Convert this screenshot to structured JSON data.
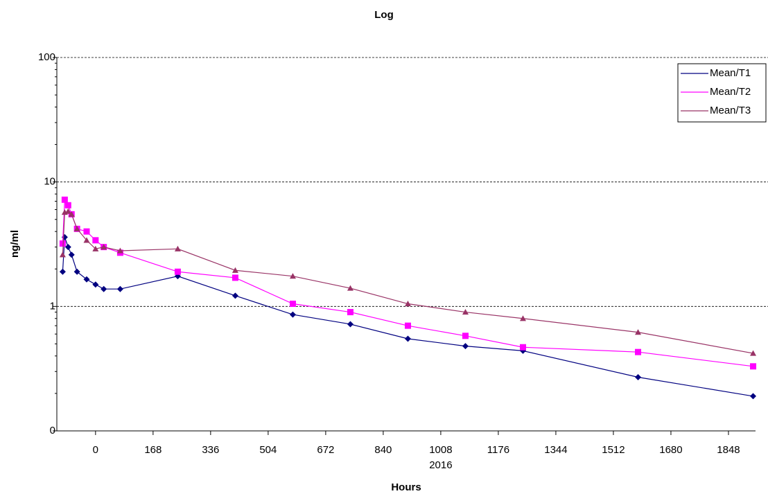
{
  "chart_data": {
    "type": "line",
    "title": "Log",
    "x_label": "Hours",
    "y_label": "ng/ml",
    "x_annotation": "2016",
    "x": [
      -96,
      -90,
      -80,
      -70,
      -54,
      -26,
      0,
      24,
      72,
      240,
      408,
      576,
      744,
      912,
      1080,
      1248,
      1584,
      1920
    ],
    "series": [
      {
        "name": "Mean/T1",
        "color": "#000080",
        "marker": "diamond",
        "values": [
          1.9,
          3.6,
          3.0,
          2.6,
          1.9,
          1.65,
          1.5,
          1.38,
          1.38,
          1.75,
          1.22,
          0.86,
          0.72,
          0.55,
          0.48,
          0.44,
          0.27,
          0.19
        ]
      },
      {
        "name": "Mean/T2",
        "color": "#ff00ff",
        "marker": "square",
        "values": [
          3.2,
          7.2,
          6.5,
          5.5,
          4.2,
          4.0,
          3.4,
          3.0,
          2.7,
          1.9,
          1.7,
          1.05,
          0.9,
          0.7,
          0.58,
          0.47,
          0.43,
          0.33
        ]
      },
      {
        "name": "Mean/T3",
        "color": "#993366",
        "marker": "triangle",
        "values": [
          2.6,
          5.7,
          5.8,
          5.5,
          4.2,
          3.4,
          2.9,
          3.0,
          2.8,
          2.9,
          1.95,
          1.75,
          1.4,
          1.05,
          0.9,
          0.8,
          0.62,
          0.42
        ]
      }
    ],
    "xlim": [
      -113,
      1927
    ],
    "xticks": [
      0,
      168,
      336,
      504,
      672,
      840,
      1008,
      1176,
      1344,
      1512,
      1680,
      1848
    ],
    "ylim": [
      0.1,
      100
    ],
    "yticks": [
      {
        "value": 0.1,
        "label": "0"
      },
      1,
      10,
      100
    ],
    "log_y": true,
    "grid": true,
    "legend": "top-right"
  }
}
